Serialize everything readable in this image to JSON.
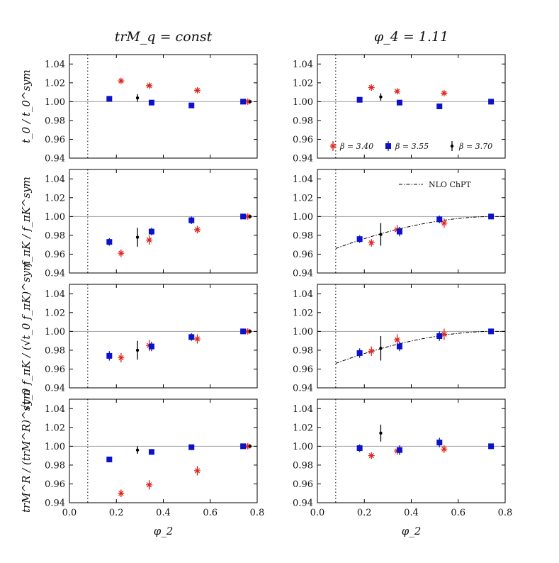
{
  "chart_data": {
    "type": "scatter",
    "column_titles": [
      "trM_q = const",
      "φ_4 = 1.11"
    ],
    "xlabel": "φ_2",
    "xlim": [
      0.0,
      0.8
    ],
    "xticks": [
      "0.0",
      "0.2",
      "0.4",
      "0.6",
      "0.8"
    ],
    "ylim": [
      0.94,
      1.05
    ],
    "yticks": [
      "0.94",
      "0.96",
      "0.98",
      "1.00",
      "1.02",
      "1.04"
    ],
    "reference_line_y": 1.0,
    "physical_point_x": 0.078,
    "row_ylabels": [
      "t_0 / t_0^sym",
      "f_πK / f_πK^sym",
      "√t_0 f_πK / (√t_0 f_πK)^sym",
      "trM^R / (trM^R)^sym"
    ],
    "legend": {
      "entries": [
        "β = 3.40",
        "β = 3.55",
        "β = 3.70"
      ],
      "fit_label": "NLO ChPT"
    },
    "colors": {
      "b340": "#e0241b",
      "b355": "#0b12c8",
      "b370": "#000000",
      "axis": "#000000",
      "refline": "#a0a0a0"
    },
    "panels": [
      {
        "row": 0,
        "col": 0,
        "series": [
          {
            "name": "β = 3.40",
            "marker": "star",
            "points": [
              [
                0.22,
                1.022,
                0.002
              ],
              [
                0.34,
                1.017,
                0.002
              ],
              [
                0.545,
                1.012,
                0.002
              ],
              [
                0.76,
                1.0,
                0.001
              ]
            ]
          },
          {
            "name": "β = 3.55",
            "marker": "square",
            "points": [
              [
                0.17,
                1.003,
                0.002
              ],
              [
                0.35,
                0.999,
                0.002
              ],
              [
                0.52,
                0.996,
                0.002
              ],
              [
                0.74,
                1.0,
                0.001
              ]
            ]
          },
          {
            "name": "β = 3.70",
            "marker": "dot",
            "points": [
              [
                0.29,
                1.004,
                0.004
              ],
              [
                0.77,
                1.0,
                0.001
              ]
            ]
          }
        ]
      },
      {
        "row": 0,
        "col": 1,
        "series": [
          {
            "name": "β = 3.40",
            "marker": "star",
            "points": [
              [
                0.23,
                1.015,
                0.002
              ],
              [
                0.34,
                1.011,
                0.002
              ],
              [
                0.54,
                1.009,
                0.002
              ]
            ]
          },
          {
            "name": "β = 3.55",
            "marker": "square",
            "points": [
              [
                0.18,
                1.002,
                0.002
              ],
              [
                0.35,
                0.999,
                0.002
              ],
              [
                0.52,
                0.995,
                0.002
              ],
              [
                0.74,
                1.0,
                0.001
              ]
            ]
          },
          {
            "name": "β = 3.70",
            "marker": "dot",
            "points": [
              [
                0.27,
                1.005,
                0.004
              ]
            ]
          }
        ]
      },
      {
        "row": 1,
        "col": 0,
        "series": [
          {
            "name": "β = 3.40",
            "marker": "star",
            "points": [
              [
                0.22,
                0.961,
                0.004
              ],
              [
                0.34,
                0.975,
                0.005
              ],
              [
                0.545,
                0.986,
                0.004
              ],
              [
                0.76,
                1.0,
                0.001
              ]
            ]
          },
          {
            "name": "β = 3.55",
            "marker": "square",
            "points": [
              [
                0.17,
                0.973,
                0.004
              ],
              [
                0.35,
                0.984,
                0.004
              ],
              [
                0.52,
                0.996,
                0.004
              ],
              [
                0.74,
                1.0,
                0.001
              ]
            ]
          },
          {
            "name": "β = 3.70",
            "marker": "dot",
            "points": [
              [
                0.29,
                0.978,
                0.01
              ],
              [
                0.77,
                1.0,
                0.001
              ]
            ]
          }
        ]
      },
      {
        "row": 1,
        "col": 1,
        "curve": true,
        "series": [
          {
            "name": "β = 3.40",
            "marker": "star",
            "points": [
              [
                0.23,
                0.972,
                0.004
              ],
              [
                0.34,
                0.986,
                0.005
              ],
              [
                0.54,
                0.993,
                0.005
              ]
            ]
          },
          {
            "name": "β = 3.55",
            "marker": "square",
            "points": [
              [
                0.18,
                0.976,
                0.004
              ],
              [
                0.35,
                0.984,
                0.005
              ],
              [
                0.52,
                0.997,
                0.004
              ],
              [
                0.74,
                1.0,
                0.001
              ]
            ]
          },
          {
            "name": "β = 3.70",
            "marker": "dot",
            "points": [
              [
                0.27,
                0.981,
                0.012
              ]
            ]
          }
        ]
      },
      {
        "row": 2,
        "col": 0,
        "series": [
          {
            "name": "β = 3.40",
            "marker": "star",
            "points": [
              [
                0.22,
                0.972,
                0.005
              ],
              [
                0.34,
                0.985,
                0.006
              ],
              [
                0.545,
                0.992,
                0.005
              ],
              [
                0.76,
                1.0,
                0.001
              ]
            ]
          },
          {
            "name": "β = 3.55",
            "marker": "square",
            "points": [
              [
                0.17,
                0.974,
                0.005
              ],
              [
                0.35,
                0.984,
                0.005
              ],
              [
                0.52,
                0.994,
                0.004
              ],
              [
                0.74,
                1.0,
                0.001
              ]
            ]
          },
          {
            "name": "β = 3.70",
            "marker": "dot",
            "points": [
              [
                0.29,
                0.98,
                0.01
              ],
              [
                0.77,
                1.0,
                0.001
              ]
            ]
          }
        ]
      },
      {
        "row": 2,
        "col": 1,
        "curve": true,
        "series": [
          {
            "name": "β = 3.40",
            "marker": "star",
            "points": [
              [
                0.23,
                0.979,
                0.005
              ],
              [
                0.34,
                0.991,
                0.006
              ],
              [
                0.54,
                0.997,
                0.006
              ]
            ]
          },
          {
            "name": "β = 3.55",
            "marker": "square",
            "points": [
              [
                0.18,
                0.977,
                0.005
              ],
              [
                0.35,
                0.984,
                0.005
              ],
              [
                0.52,
                0.995,
                0.005
              ],
              [
                0.74,
                1.0,
                0.001
              ]
            ]
          },
          {
            "name": "β = 3.70",
            "marker": "dot",
            "points": [
              [
                0.27,
                0.982,
                0.013
              ]
            ]
          }
        ]
      },
      {
        "row": 3,
        "col": 0,
        "series": [
          {
            "name": "β = 3.40",
            "marker": "star",
            "points": [
              [
                0.22,
                0.95,
                0.004
              ],
              [
                0.34,
                0.959,
                0.005
              ],
              [
                0.545,
                0.974,
                0.005
              ],
              [
                0.76,
                1.0,
                0.001
              ]
            ]
          },
          {
            "name": "β = 3.55",
            "marker": "square",
            "points": [
              [
                0.17,
                0.986,
                0.002
              ],
              [
                0.35,
                0.994,
                0.002
              ],
              [
                0.52,
                0.999,
                0.002
              ],
              [
                0.74,
                1.0,
                0.001
              ]
            ]
          },
          {
            "name": "β = 3.70",
            "marker": "dot",
            "points": [
              [
                0.29,
                0.996,
                0.004
              ],
              [
                0.77,
                1.0,
                0.001
              ]
            ]
          }
        ]
      },
      {
        "row": 3,
        "col": 1,
        "series": [
          {
            "name": "β = 3.40",
            "marker": "star",
            "points": [
              [
                0.23,
                0.99,
                0.003
              ],
              [
                0.34,
                0.995,
                0.004
              ],
              [
                0.54,
                0.997,
                0.004
              ]
            ]
          },
          {
            "name": "β = 3.55",
            "marker": "square",
            "points": [
              [
                0.18,
                0.998,
                0.004
              ],
              [
                0.35,
                0.996,
                0.005
              ],
              [
                0.52,
                1.004,
                0.005
              ],
              [
                0.74,
                1.0,
                0.001
              ]
            ]
          },
          {
            "name": "β = 3.70",
            "marker": "dot",
            "points": [
              [
                0.27,
                1.014,
                0.009
              ]
            ]
          }
        ]
      }
    ]
  }
}
